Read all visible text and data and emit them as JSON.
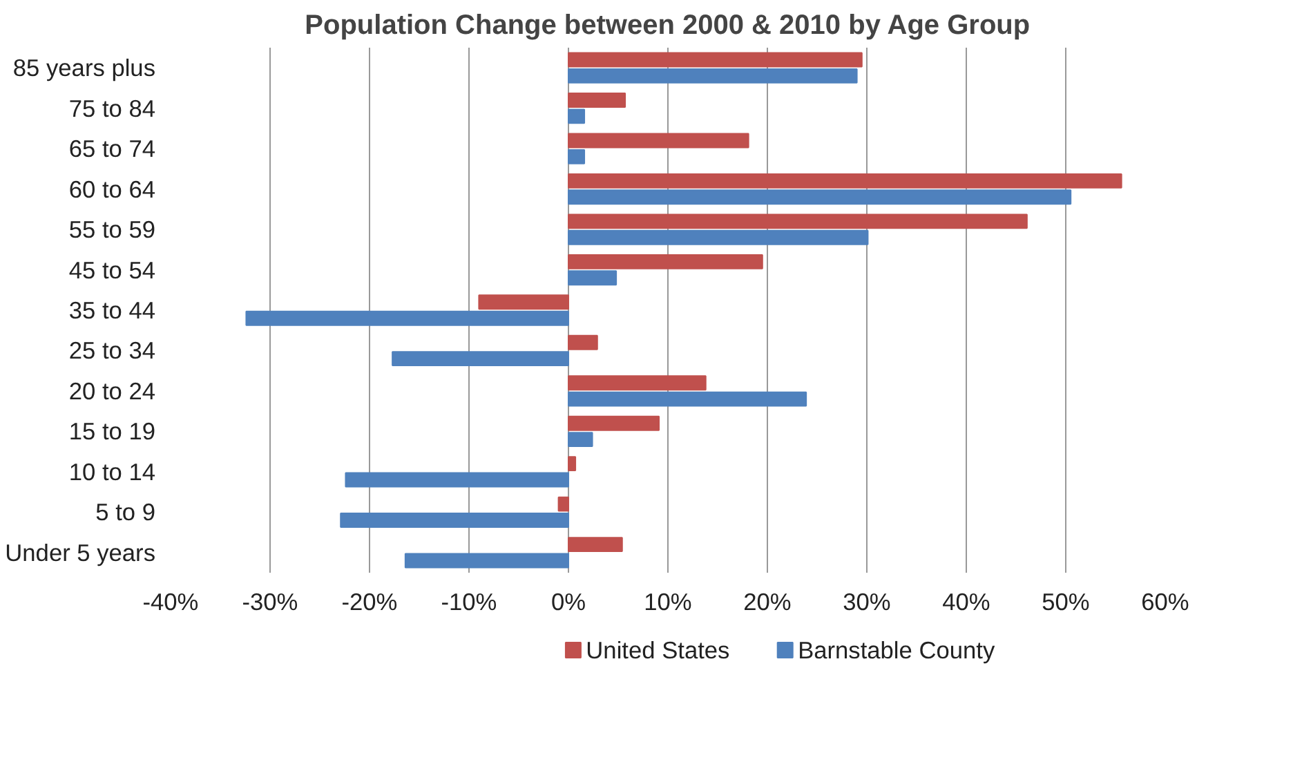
{
  "chart_data": {
    "type": "bar",
    "orientation": "horizontal",
    "title": "Population Change between 2000 & 2010 by Age Group",
    "categories": [
      "85 years plus",
      "75 to 84",
      "65 to 74",
      "60 to 64",
      "55 to 59",
      "45 to 54",
      "35 to 44",
      "25 to 34",
      "20 to 24",
      "15 to 19",
      "10 to 14",
      "5 to 9",
      "Under 5 years"
    ],
    "series": [
      {
        "name": "United States",
        "color": "#c0504d",
        "values": [
          29.5,
          5.7,
          18.1,
          55.6,
          46.1,
          19.5,
          -9.0,
          2.9,
          13.8,
          9.1,
          0.7,
          -1.0,
          5.4
        ]
      },
      {
        "name": "Barnstable County",
        "color": "#4f81bd",
        "values": [
          29.0,
          1.6,
          1.6,
          50.5,
          30.1,
          4.8,
          -32.4,
          -17.7,
          23.9,
          2.4,
          -22.4,
          -22.9,
          -16.4
        ]
      }
    ],
    "xlim": [
      -40,
      60
    ],
    "xticks": [
      {
        "value": -40,
        "label": "-40%"
      },
      {
        "value": -30,
        "label": "-30%"
      },
      {
        "value": -20,
        "label": "-20%"
      },
      {
        "value": -10,
        "label": "-10%"
      },
      {
        "value": 0,
        "label": "0%"
      },
      {
        "value": 10,
        "label": "10%"
      },
      {
        "value": 20,
        "label": "20%"
      },
      {
        "value": 30,
        "label": "30%"
      },
      {
        "value": 40,
        "label": "40%"
      },
      {
        "value": 50,
        "label": "50%"
      },
      {
        "value": 60,
        "label": "60%"
      }
    ],
    "grid": "x",
    "legend": "bottom"
  }
}
